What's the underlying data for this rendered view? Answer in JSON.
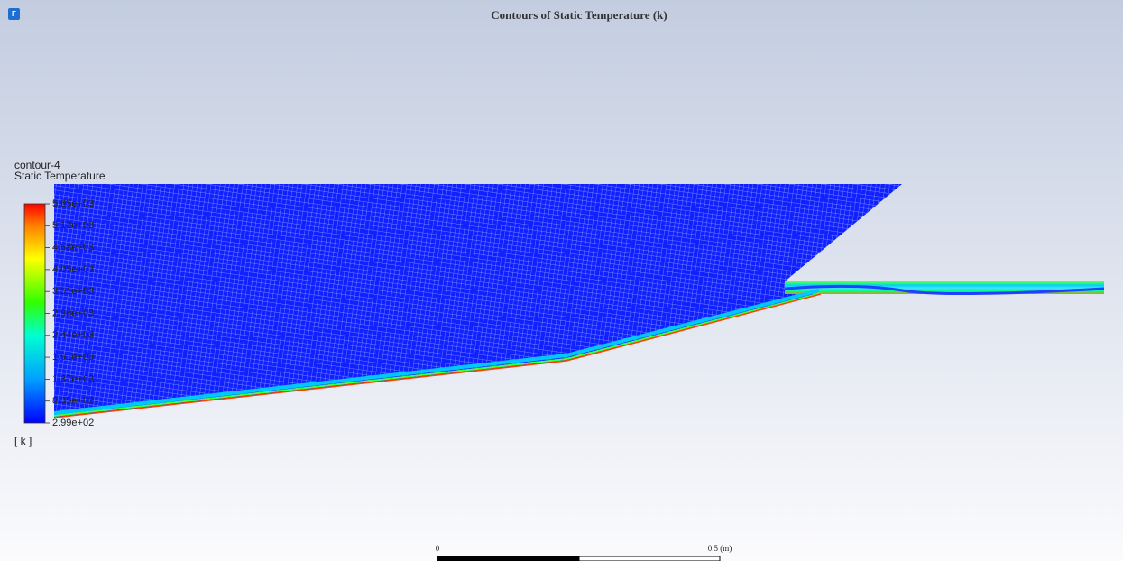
{
  "window": {
    "icon": "F",
    "title": "Contours of Static Temperature (k)"
  },
  "legend": {
    "name": "contour-4",
    "quantity": "Static Temperature",
    "levels": [
      "5.65e+03",
      "5.12e+03",
      "4.58e+03",
      "4.05e+03",
      "3.51e+03",
      "2.98e+03",
      "2.44e+03",
      "1.91e+03",
      "1.37e+03",
      "8.35e+02",
      "2.99e+02"
    ],
    "unit": "[ k ]"
  },
  "scale_bar": {
    "start": "0",
    "end": "0.5 (m)"
  }
}
